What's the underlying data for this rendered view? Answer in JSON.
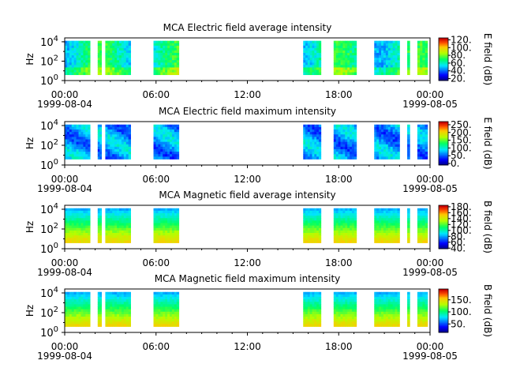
{
  "chart_data": [
    {
      "type": "heatmap",
      "title": "MCA  Electric field average intensity",
      "ylabel": "Hz",
      "yscale": "log",
      "ytick_labels": [
        "10^0",
        "10^2",
        "10^4"
      ],
      "xlim": [
        "1999-08-04 00:00",
        "1999-08-05 00:00"
      ],
      "x_tick_labels": [
        "00:00",
        "06:00",
        "12:00",
        "18:00",
        "00:00"
      ],
      "date_labels": [
        "1999-08-04",
        "1999-08-05"
      ],
      "colorbar": {
        "label": "E field (dB)",
        "range": [
          15,
          125
        ],
        "ticks": [
          "20.",
          "40.",
          "60.",
          "80.",
          "100.",
          "120."
        ],
        "tick_values": [
          20,
          40,
          60,
          80,
          100,
          120
        ]
      },
      "data_intervals": [
        [
          "00:00",
          "01:40"
        ],
        [
          "02:10",
          "02:25"
        ],
        [
          "02:40",
          "04:20"
        ],
        [
          "05:50",
          "07:30"
        ],
        [
          "15:40",
          "16:50"
        ],
        [
          "17:40",
          "19:10"
        ],
        [
          "20:20",
          "22:00"
        ],
        [
          "22:30",
          "22:40"
        ],
        [
          "23:10",
          "23:50"
        ]
      ],
      "palette": "avg_e"
    },
    {
      "type": "heatmap",
      "title": "MCA  Electric field maximum intensity",
      "ylabel": "Hz",
      "yscale": "log",
      "ytick_labels": [
        "10^0",
        "10^2",
        "10^4"
      ],
      "xlim": [
        "1999-08-04 00:00",
        "1999-08-05 00:00"
      ],
      "x_tick_labels": [
        "00:00",
        "06:00",
        "12:00",
        "18:00",
        "00:00"
      ],
      "date_labels": [
        "1999-08-04",
        "1999-08-05"
      ],
      "colorbar": {
        "label": "E field (dB)",
        "range": [
          -10,
          270
        ],
        "ticks": [
          "0.",
          "50.",
          "100.",
          "150.",
          "200.",
          "250."
        ],
        "tick_values": [
          0,
          50,
          100,
          150,
          200,
          250
        ]
      },
      "data_intervals": [
        [
          "00:00",
          "01:40"
        ],
        [
          "02:10",
          "02:25"
        ],
        [
          "02:40",
          "04:20"
        ],
        [
          "05:50",
          "07:30"
        ],
        [
          "15:40",
          "16:50"
        ],
        [
          "17:40",
          "19:10"
        ],
        [
          "20:20",
          "22:00"
        ],
        [
          "22:30",
          "22:40"
        ],
        [
          "23:10",
          "23:50"
        ]
      ],
      "palette": "max_e"
    },
    {
      "type": "heatmap",
      "title": "MCA  Magnetic field average intensity",
      "ylabel": "Hz",
      "yscale": "log",
      "ytick_labels": [
        "10^0",
        "10^2",
        "10^4"
      ],
      "xlim": [
        "1999-08-04 00:00",
        "1999-08-05 00:00"
      ],
      "x_tick_labels": [
        "00:00",
        "06:00",
        "12:00",
        "18:00",
        "00:00"
      ],
      "date_labels": [
        "1999-08-04",
        "1999-08-05"
      ],
      "colorbar": {
        "label": "B field (dB)",
        "range": [
          38,
          185
        ],
        "ticks": [
          "40.",
          "60.",
          "80.",
          "100.",
          "120.",
          "140.",
          "160.",
          "180."
        ],
        "tick_values": [
          40,
          60,
          80,
          100,
          120,
          140,
          160,
          180
        ]
      },
      "data_intervals": [
        [
          "00:00",
          "01:40"
        ],
        [
          "02:10",
          "02:25"
        ],
        [
          "02:40",
          "04:20"
        ],
        [
          "05:50",
          "07:30"
        ],
        [
          "15:40",
          "16:50"
        ],
        [
          "17:40",
          "19:10"
        ],
        [
          "20:20",
          "22:00"
        ],
        [
          "22:30",
          "22:40"
        ],
        [
          "23:10",
          "23:50"
        ]
      ],
      "palette": "b"
    },
    {
      "type": "heatmap",
      "title": "MCA  Magnetic field maximum intensity",
      "ylabel": "Hz",
      "yscale": "log",
      "ytick_labels": [
        "10^0",
        "10^2",
        "10^4"
      ],
      "xlim": [
        "1999-08-04 00:00",
        "1999-08-05 00:00"
      ],
      "x_tick_labels": [
        "00:00",
        "06:00",
        "12:00",
        "18:00",
        "00:00"
      ],
      "date_labels": [
        "1999-08-04",
        "1999-08-05"
      ],
      "colorbar": {
        "label": "B field (dB)",
        "range": [
          15,
          195
        ],
        "ticks": [
          "50.",
          "100.",
          "150."
        ],
        "tick_values": [
          50,
          100,
          150
        ]
      },
      "data_intervals": [
        [
          "00:00",
          "01:40"
        ],
        [
          "02:10",
          "02:25"
        ],
        [
          "02:40",
          "04:20"
        ],
        [
          "05:50",
          "07:30"
        ],
        [
          "15:40",
          "16:50"
        ],
        [
          "17:40",
          "19:10"
        ],
        [
          "20:20",
          "22:00"
        ],
        [
          "22:30",
          "22:40"
        ],
        [
          "23:10",
          "23:50"
        ]
      ],
      "palette": "b"
    }
  ]
}
